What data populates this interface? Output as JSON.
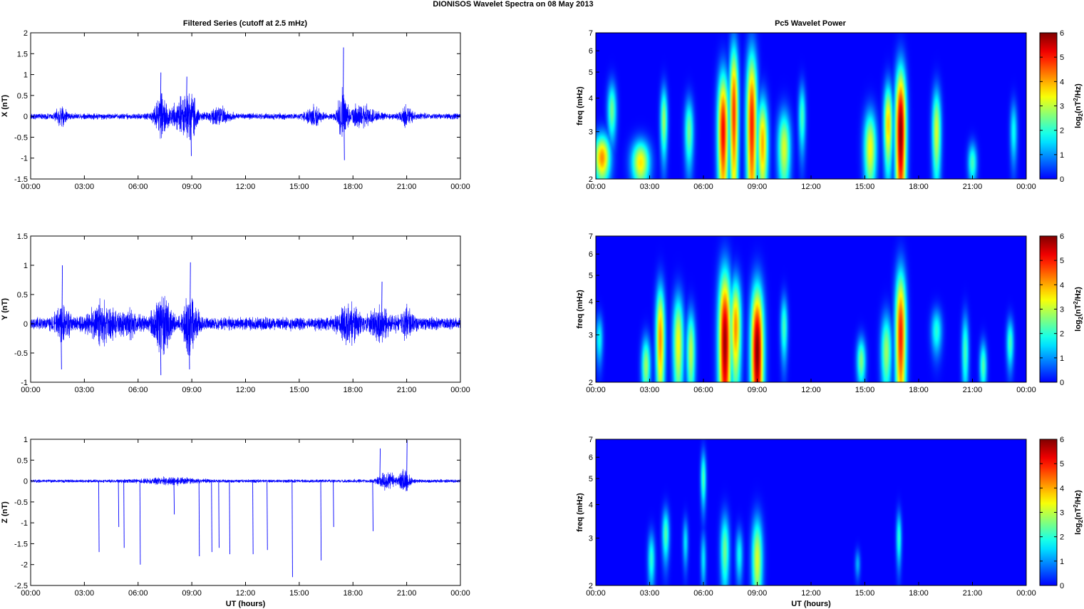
{
  "figure": {
    "title": "DIONISOS Wavelet Spectra on 08 May      2013",
    "left_title": "Filtered Series (cutoff at 2.5 mHz)",
    "right_title": "Pc5 Wavelet Power",
    "xlabel": "UT (hours)"
  },
  "chart_data": [
    {
      "type": "line",
      "title": "Filtered Series (cutoff at 2.5 mHz)",
      "ylabel": "X (nT)",
      "xlabel": "",
      "xticklabels": [
        "00:00",
        "03:00",
        "06:00",
        "09:00",
        "12:00",
        "15:00",
        "18:00",
        "21:00",
        "00:00"
      ],
      "xlim_hours": [
        0,
        24
      ],
      "ylim": [
        -1.5,
        2
      ],
      "yticks": [
        -1.5,
        -1,
        -0.5,
        0,
        0.5,
        1,
        1.5,
        2
      ],
      "yticklabels": [
        "-1.5",
        "-1",
        "-0.5",
        "0",
        "0.5",
        "1",
        "1.5",
        "2"
      ],
      "color": "#0000ff",
      "series": [
        {
          "base_amplitude": 0.12,
          "bursts": [
            {
              "t": 1.7,
              "amp": 0.35,
              "width": 0.3
            },
            {
              "t": 7.3,
              "amp": 0.8,
              "width": 0.4
            },
            {
              "t": 8.4,
              "amp": 0.6,
              "width": 0.5
            },
            {
              "t": 9.0,
              "amp": 0.7,
              "width": 0.3
            },
            {
              "t": 10.5,
              "amp": 0.3,
              "width": 0.6
            },
            {
              "t": 15.8,
              "amp": 0.35,
              "width": 0.4
            },
            {
              "t": 17.4,
              "amp": 1.0,
              "width": 0.25
            },
            {
              "t": 18.5,
              "amp": 0.4,
              "width": 0.7
            },
            {
              "t": 21.0,
              "amp": 0.4,
              "width": 0.3
            }
          ],
          "spikes": [
            {
              "t": 17.45,
              "value": 1.65
            },
            {
              "t": 17.5,
              "value": -1.05
            },
            {
              "t": 7.25,
              "value": 1.05
            },
            {
              "t": 8.95,
              "value": -0.95
            },
            {
              "t": 8.7,
              "value": 0.95
            }
          ]
        }
      ]
    },
    {
      "type": "line",
      "ylabel": "Y (nT)",
      "xlabel": "",
      "xticklabels": [
        "00:00",
        "03:00",
        "06:00",
        "09:00",
        "12:00",
        "15:00",
        "18:00",
        "21:00",
        "00:00"
      ],
      "xlim_hours": [
        0,
        24
      ],
      "ylim": [
        -1,
        1.5
      ],
      "yticks": [
        -1,
        -0.5,
        0,
        0.5,
        1,
        1.5
      ],
      "yticklabels": [
        "-1",
        "-0.5",
        "0",
        "0.5",
        "1",
        "1.5"
      ],
      "color": "#0000ff",
      "series": [
        {
          "base_amplitude": 0.18,
          "bursts": [
            {
              "t": 1.8,
              "amp": 0.45,
              "width": 0.4
            },
            {
              "t": 4.0,
              "amp": 0.45,
              "width": 0.8
            },
            {
              "t": 5.5,
              "amp": 0.3,
              "width": 0.5
            },
            {
              "t": 7.3,
              "amp": 0.75,
              "width": 0.5
            },
            {
              "t": 8.9,
              "amp": 0.7,
              "width": 0.4
            },
            {
              "t": 17.8,
              "amp": 0.45,
              "width": 0.6
            },
            {
              "t": 19.5,
              "amp": 0.35,
              "width": 0.6
            },
            {
              "t": 21.0,
              "amp": 0.3,
              "width": 0.4
            }
          ],
          "spikes": [
            {
              "t": 1.75,
              "value": 1.0
            },
            {
              "t": 8.9,
              "value": 1.05
            },
            {
              "t": 7.25,
              "value": -0.88
            },
            {
              "t": 1.7,
              "value": -0.78
            },
            {
              "t": 8.85,
              "value": -0.78
            },
            {
              "t": 19.6,
              "value": 0.72
            }
          ]
        }
      ]
    },
    {
      "type": "line",
      "ylabel": "Z (nT)",
      "xlabel": "UT (hours)",
      "xticklabels": [
        "00:00",
        "03:00",
        "06:00",
        "09:00",
        "12:00",
        "15:00",
        "18:00",
        "21:00",
        "00:00"
      ],
      "xlim_hours": [
        0,
        24
      ],
      "ylim": [
        -2.5,
        1
      ],
      "yticks": [
        -2.5,
        -2,
        -1.5,
        -1,
        -0.5,
        0,
        0.5,
        1
      ],
      "yticklabels": [
        "-2.5",
        "-2",
        "-1.5",
        "-1",
        "-0.5",
        "0",
        "0.5",
        "1"
      ],
      "color": "#0000ff",
      "series": [
        {
          "base_amplitude": 0.06,
          "bursts": [
            {
              "t": 7.8,
              "amp": 0.12,
              "width": 1.5
            },
            {
              "t": 19.9,
              "amp": 0.35,
              "width": 0.5
            },
            {
              "t": 20.9,
              "amp": 0.45,
              "width": 0.3
            }
          ],
          "spikes": [
            {
              "t": 3.8,
              "value": -1.7
            },
            {
              "t": 4.9,
              "value": -1.1
            },
            {
              "t": 5.2,
              "value": -1.6
            },
            {
              "t": 6.1,
              "value": -2.0
            },
            {
              "t": 8.0,
              "value": -0.8
            },
            {
              "t": 9.4,
              "value": -1.8
            },
            {
              "t": 10.1,
              "value": -1.7
            },
            {
              "t": 10.5,
              "value": -1.6
            },
            {
              "t": 11.1,
              "value": -1.75
            },
            {
              "t": 12.4,
              "value": -1.75
            },
            {
              "t": 13.2,
              "value": -1.65
            },
            {
              "t": 14.6,
              "value": -2.3
            },
            {
              "t": 16.2,
              "value": -1.9
            },
            {
              "t": 16.9,
              "value": -1.1
            },
            {
              "t": 19.1,
              "value": -1.2
            },
            {
              "t": 19.5,
              "value": 0.78
            },
            {
              "t": 21.0,
              "value": 0.98
            }
          ]
        }
      ]
    },
    {
      "type": "heatmap",
      "title": "Pc5 Wavelet Power",
      "ylabel": "freq (mHz)",
      "xticklabels": [
        "00:00",
        "03:00",
        "06:00",
        "09:00",
        "12:00",
        "15:00",
        "18:00",
        "21:00",
        "00:00"
      ],
      "yticklabels": [
        "2",
        "3",
        "4",
        "5",
        "6",
        "7"
      ],
      "ylim_mHz": [
        2,
        7
      ],
      "scale": "log",
      "colorbar": {
        "label": "log2(nT2/Hz)",
        "min": 0,
        "max": 6,
        "ticks": [
          "0",
          "1",
          "2",
          "3",
          "4",
          "5",
          "6"
        ],
        "colormap": "jet"
      },
      "blobs": [
        {
          "t": 0.35,
          "f": 2.4,
          "power": 4.2,
          "dt": 0.45,
          "df": 0.5
        },
        {
          "t": 0.9,
          "f": 3.6,
          "power": 2.5,
          "dt": 0.25,
          "df": 0.9
        },
        {
          "t": 2.5,
          "f": 2.3,
          "power": 3.6,
          "dt": 0.5,
          "df": 0.45
        },
        {
          "t": 3.8,
          "f": 3.3,
          "power": 2.8,
          "dt": 0.2,
          "df": 1.0
        },
        {
          "t": 5.2,
          "f": 3.0,
          "power": 2.5,
          "dt": 0.25,
          "df": 0.9
        },
        {
          "t": 7.1,
          "f": 3.0,
          "power": 5.2,
          "dt": 0.3,
          "df": 1.8
        },
        {
          "t": 7.7,
          "f": 3.5,
          "power": 4.8,
          "dt": 0.25,
          "df": 2.5
        },
        {
          "t": 8.7,
          "f": 3.2,
          "power": 5.0,
          "dt": 0.3,
          "df": 2.5
        },
        {
          "t": 9.3,
          "f": 2.7,
          "power": 4.0,
          "dt": 0.3,
          "df": 1.2
        },
        {
          "t": 10.5,
          "f": 2.6,
          "power": 3.2,
          "dt": 0.35,
          "df": 0.9
        },
        {
          "t": 11.5,
          "f": 3.4,
          "power": 2.2,
          "dt": 0.2,
          "df": 1.0
        },
        {
          "t": 15.3,
          "f": 2.6,
          "power": 3.4,
          "dt": 0.35,
          "df": 0.9
        },
        {
          "t": 16.3,
          "f": 3.2,
          "power": 3.8,
          "dt": 0.25,
          "df": 1.2
        },
        {
          "t": 17.0,
          "f": 3.0,
          "power": 6.0,
          "dt": 0.3,
          "df": 2.0
        },
        {
          "t": 19.0,
          "f": 3.0,
          "power": 3.2,
          "dt": 0.25,
          "df": 1.2
        },
        {
          "t": 21.0,
          "f": 2.3,
          "power": 2.2,
          "dt": 0.25,
          "df": 0.4
        },
        {
          "t": 23.3,
          "f": 3.0,
          "power": 1.8,
          "dt": 0.2,
          "df": 0.8
        }
      ]
    },
    {
      "type": "heatmap",
      "ylabel": "freq (mHz)",
      "xticklabels": [
        "00:00",
        "03:00",
        "06:00",
        "09:00",
        "12:00",
        "15:00",
        "18:00",
        "21:00",
        "00:00"
      ],
      "yticklabels": [
        "2",
        "3",
        "4",
        "5",
        "6",
        "7"
      ],
      "ylim_mHz": [
        2,
        7
      ],
      "scale": "log",
      "colorbar": {
        "label": "log2(nT2/Hz)",
        "min": 0,
        "max": 6,
        "ticks": [
          "0",
          "1",
          "2",
          "3",
          "4",
          "5",
          "6"
        ],
        "colormap": "jet"
      },
      "blobs": [
        {
          "t": 0.2,
          "f": 2.9,
          "power": 1.8,
          "dt": 0.2,
          "df": 0.6
        },
        {
          "t": 2.8,
          "f": 2.3,
          "power": 2.8,
          "dt": 0.25,
          "df": 0.6
        },
        {
          "t": 3.6,
          "f": 2.9,
          "power": 4.2,
          "dt": 0.25,
          "df": 1.5
        },
        {
          "t": 4.6,
          "f": 2.8,
          "power": 3.4,
          "dt": 0.3,
          "df": 1.3
        },
        {
          "t": 5.3,
          "f": 2.6,
          "power": 3.0,
          "dt": 0.25,
          "df": 1.0
        },
        {
          "t": 7.2,
          "f": 2.8,
          "power": 5.8,
          "dt": 0.35,
          "df": 2.2
        },
        {
          "t": 7.8,
          "f": 3.2,
          "power": 4.2,
          "dt": 0.3,
          "df": 1.5
        },
        {
          "t": 9.0,
          "f": 2.6,
          "power": 6.0,
          "dt": 0.35,
          "df": 1.8
        },
        {
          "t": 10.5,
          "f": 3.2,
          "power": 2.2,
          "dt": 0.2,
          "df": 0.9
        },
        {
          "t": 14.8,
          "f": 2.4,
          "power": 2.6,
          "dt": 0.25,
          "df": 0.5
        },
        {
          "t": 16.2,
          "f": 2.6,
          "power": 2.8,
          "dt": 0.3,
          "df": 0.9
        },
        {
          "t": 17.0,
          "f": 3.0,
          "power": 5.0,
          "dt": 0.3,
          "df": 2.0
        },
        {
          "t": 19.0,
          "f": 3.1,
          "power": 2.0,
          "dt": 0.3,
          "df": 0.6
        },
        {
          "t": 20.6,
          "f": 2.6,
          "power": 2.2,
          "dt": 0.2,
          "df": 0.9
        },
        {
          "t": 21.6,
          "f": 2.3,
          "power": 2.3,
          "dt": 0.2,
          "df": 0.5
        },
        {
          "t": 23.1,
          "f": 2.8,
          "power": 2.2,
          "dt": 0.2,
          "df": 0.6
        }
      ]
    },
    {
      "type": "heatmap",
      "ylabel": "freq (mHz)",
      "xlabel": "UT (hours)",
      "xticklabels": [
        "00:00",
        "03:00",
        "06:00",
        "09:00",
        "12:00",
        "15:00",
        "18:00",
        "21:00",
        "00:00"
      ],
      "yticklabels": [
        "2",
        "3",
        "4",
        "5",
        "6",
        "7"
      ],
      "ylim_mHz": [
        2,
        7
      ],
      "scale": "log",
      "colorbar": {
        "label": "log2(nT2/Hz)",
        "min": 0,
        "max": 6,
        "ticks": [
          "0",
          "1",
          "2",
          "3",
          "4",
          "5",
          "6"
        ],
        "colormap": "jet"
      },
      "blobs": [
        {
          "t": 3.1,
          "f": 2.5,
          "power": 2.0,
          "dt": 0.2,
          "df": 0.6
        },
        {
          "t": 3.9,
          "f": 3.1,
          "power": 2.3,
          "dt": 0.2,
          "df": 0.7
        },
        {
          "t": 5.0,
          "f": 2.9,
          "power": 1.6,
          "dt": 0.15,
          "df": 0.6
        },
        {
          "t": 6.0,
          "f": 5.0,
          "power": 2.3,
          "dt": 0.15,
          "df": 1.2
        },
        {
          "t": 6.0,
          "f": 2.5,
          "power": 1.6,
          "dt": 0.15,
          "df": 0.6
        },
        {
          "t": 7.2,
          "f": 2.7,
          "power": 2.5,
          "dt": 0.25,
          "df": 0.9
        },
        {
          "t": 8.0,
          "f": 2.6,
          "power": 1.8,
          "dt": 0.2,
          "df": 0.6
        },
        {
          "t": 9.0,
          "f": 2.5,
          "power": 3.2,
          "dt": 0.3,
          "df": 1.0
        },
        {
          "t": 14.6,
          "f": 2.4,
          "power": 1.2,
          "dt": 0.15,
          "df": 0.3
        },
        {
          "t": 16.9,
          "f": 3.0,
          "power": 2.0,
          "dt": 0.15,
          "df": 0.7
        }
      ]
    }
  ]
}
